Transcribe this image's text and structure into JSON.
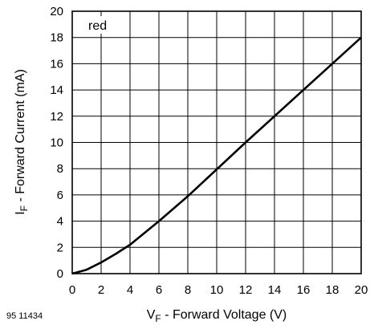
{
  "chart_data": {
    "type": "line",
    "series": [
      {
        "name": "",
        "x": [
          0,
          1,
          2,
          3,
          4,
          6,
          8,
          10,
          12,
          14,
          16,
          18,
          20
        ],
        "y": [
          0,
          0.3,
          0.85,
          1.5,
          2.2,
          4.0,
          5.9,
          7.95,
          10.0,
          12.0,
          14.0,
          16.0,
          18.0
        ]
      }
    ],
    "xlabel_main": "V",
    "xlabel_sub": "F",
    "xlabel_rest": " - Forward Voltage (V)",
    "ylabel_main": "I",
    "ylabel_sub": "F",
    "ylabel_rest": " - Forward Current (mA)",
    "xlim": [
      0,
      20
    ],
    "ylim": [
      0,
      20
    ],
    "xticks": [
      0,
      2,
      4,
      6,
      8,
      10,
      12,
      14,
      16,
      18,
      20
    ],
    "yticks": [
      0,
      2,
      4,
      6,
      8,
      10,
      12,
      14,
      16,
      18,
      20
    ],
    "xtick_labels": [
      "0",
      "2",
      "4",
      "6",
      "8",
      "10",
      "12",
      "14",
      "16",
      "18",
      "20"
    ],
    "ytick_labels": [
      "0",
      "2",
      "4",
      "6",
      "8",
      "10",
      "12",
      "14",
      "16",
      "18",
      "20"
    ],
    "grid": true,
    "annotation": "red",
    "figure_code": "95 11434",
    "line_color": "#000000"
  }
}
